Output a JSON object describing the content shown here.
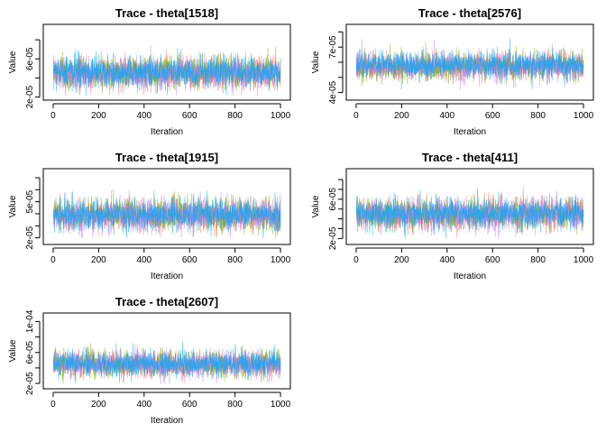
{
  "chart_data": [
    {
      "type": "line",
      "title": "Trace - theta[1518]",
      "xlabel": "Iteration",
      "ylabel": "Value",
      "xlim": [
        0,
        1000
      ],
      "ylim": [
        2e-05,
        9.3e-05
      ],
      "x_ticks": [
        0,
        200,
        400,
        600,
        800,
        1000
      ],
      "x_tick_labels": [
        "0",
        "200",
        "400",
        "600",
        "800",
        "1000"
      ],
      "y_ticks": [
        2e-05,
        4e-05,
        6e-05,
        8e-05
      ],
      "y_tick_labels": [
        "2e-05",
        "",
        "6e-05",
        ""
      ],
      "grid": false,
      "n_iterations": 1000,
      "series": [
        {
          "color": "#F8766D",
          "center": 4.55e-05,
          "spread": 8.5e-06,
          "min": 2.2e-05,
          "max": 8.2e-05
        },
        {
          "color": "#7CAE00",
          "center": 4.55e-05,
          "spread": 8.5e-06,
          "min": 2.2e-05,
          "max": 9.2e-05
        },
        {
          "color": "#C77CFF",
          "center": 4.5e-05,
          "spread": 8.5e-06,
          "min": 2.2e-05,
          "max": 8e-05
        },
        {
          "color": "#00A9FF",
          "center": 4.6e-05,
          "spread": 8.5e-06,
          "min": 2.2e-05,
          "max": 8e-05
        }
      ]
    },
    {
      "type": "line",
      "title": "Trace - theta[2576]",
      "xlabel": "Iteration",
      "ylabel": "Value",
      "xlim": [
        0,
        1000
      ],
      "ylim": [
        3.7e-05,
        8.3e-05
      ],
      "x_ticks": [
        0,
        200,
        400,
        600,
        800,
        1000
      ],
      "x_tick_labels": [
        "0",
        "200",
        "400",
        "600",
        "800",
        "1000"
      ],
      "y_ticks": [
        4e-05,
        5e-05,
        6e-05,
        7e-05,
        8e-05
      ],
      "y_tick_labels": [
        "4e-05",
        "",
        "",
        "7e-05",
        ""
      ],
      "grid": false,
      "n_iterations": 1000,
      "series": [
        {
          "color": "#F8766D",
          "center": 5.75e-05,
          "spread": 4.5e-06,
          "min": 4e-05,
          "max": 7.4e-05
        },
        {
          "color": "#7CAE00",
          "center": 5.75e-05,
          "spread": 4.5e-06,
          "min": 4e-05,
          "max": 8.2e-05
        },
        {
          "color": "#C77CFF",
          "center": 5.75e-05,
          "spread": 4.5e-06,
          "min": 4e-05,
          "max": 7.6e-05
        },
        {
          "color": "#00A9FF",
          "center": 5.8e-05,
          "spread": 4.5e-06,
          "min": 4e-05,
          "max": 7.6e-05
        }
      ]
    },
    {
      "type": "line",
      "title": "Trace - theta[1915]",
      "xlabel": "Iteration",
      "ylabel": "Value",
      "xlim": [
        0,
        1000
      ],
      "ylim": [
        1.7e-05,
        7.5e-05
      ],
      "x_ticks": [
        0,
        200,
        400,
        600,
        800,
        1000
      ],
      "x_tick_labels": [
        "0",
        "200",
        "400",
        "600",
        "800",
        "1000"
      ],
      "y_ticks": [
        2e-05,
        3e-05,
        4e-05,
        5e-05,
        6e-05,
        7e-05
      ],
      "y_tick_labels": [
        "2e-05",
        "",
        "",
        "5e-05",
        "",
        ""
      ],
      "grid": false,
      "n_iterations": 1000,
      "series": [
        {
          "color": "#F8766D",
          "center": 3.9e-05,
          "spread": 6.5e-06,
          "min": 2e-05,
          "max": 7e-05
        },
        {
          "color": "#7CAE00",
          "center": 3.9e-05,
          "spread": 6.5e-06,
          "min": 2e-05,
          "max": 7.4e-05
        },
        {
          "color": "#C77CFF",
          "center": 3.85e-05,
          "spread": 6.5e-06,
          "min": 2e-05,
          "max": 7e-05
        },
        {
          "color": "#00A9FF",
          "center": 3.95e-05,
          "spread": 6.5e-06,
          "min": 2e-05,
          "max": 7e-05
        }
      ]
    },
    {
      "type": "line",
      "title": "Trace - theta[411]",
      "xlabel": "Iteration",
      "ylabel": "Value",
      "xlim": [
        0,
        1000
      ],
      "ylim": [
        1.7e-05,
        8.8e-05
      ],
      "x_ticks": [
        0,
        200,
        400,
        600,
        800,
        1000
      ],
      "x_tick_labels": [
        "0",
        "200",
        "400",
        "600",
        "800",
        "1000"
      ],
      "y_ticks": [
        2e-05,
        3e-05,
        4e-05,
        5e-05,
        6e-05,
        7e-05,
        8e-05
      ],
      "y_tick_labels": [
        "2e-05",
        "",
        "",
        "",
        "6e-05",
        "",
        ""
      ],
      "grid": false,
      "n_iterations": 1000,
      "series": [
        {
          "color": "#F8766D",
          "center": 4.5e-05,
          "spread": 8e-06,
          "min": 2e-05,
          "max": 8e-05
        },
        {
          "color": "#7CAE00",
          "center": 4.5e-05,
          "spread": 8e-06,
          "min": 2e-05,
          "max": 8.6e-05
        },
        {
          "color": "#C77CFF",
          "center": 4.45e-05,
          "spread": 8e-06,
          "min": 2e-05,
          "max": 8e-05
        },
        {
          "color": "#00A9FF",
          "center": 4.55e-05,
          "spread": 8e-06,
          "min": 2e-05,
          "max": 8e-05
        }
      ]
    },
    {
      "type": "line",
      "title": "Trace - theta[2607]",
      "xlabel": "Iteration",
      "ylabel": "Value",
      "xlim": [
        0,
        1000
      ],
      "ylim": [
        1.7e-05,
        0.000107
      ],
      "x_ticks": [
        0,
        200,
        400,
        600,
        800,
        1000
      ],
      "x_tick_labels": [
        "0",
        "200",
        "400",
        "600",
        "800",
        "1000"
      ],
      "y_ticks": [
        2e-05,
        4e-05,
        6e-05,
        8e-05,
        0.0001
      ],
      "y_tick_labels": [
        "2e-05",
        "",
        "6e-05",
        "",
        "1e-04"
      ],
      "grid": false,
      "n_iterations": 1000,
      "series": [
        {
          "color": "#F8766D",
          "center": 4.5e-05,
          "spread": 8.5e-06,
          "min": 2e-05,
          "max": 0.000105
        },
        {
          "color": "#7CAE00",
          "center": 4.5e-05,
          "spread": 8.5e-06,
          "min": 2e-05,
          "max": 9e-05
        },
        {
          "color": "#C77CFF",
          "center": 4.45e-05,
          "spread": 8.5e-06,
          "min": 2e-05,
          "max": 8e-05
        },
        {
          "color": "#00A9FF",
          "center": 4.55e-05,
          "spread": 8.5e-06,
          "min": 2e-05,
          "max": 8e-05
        }
      ]
    }
  ]
}
